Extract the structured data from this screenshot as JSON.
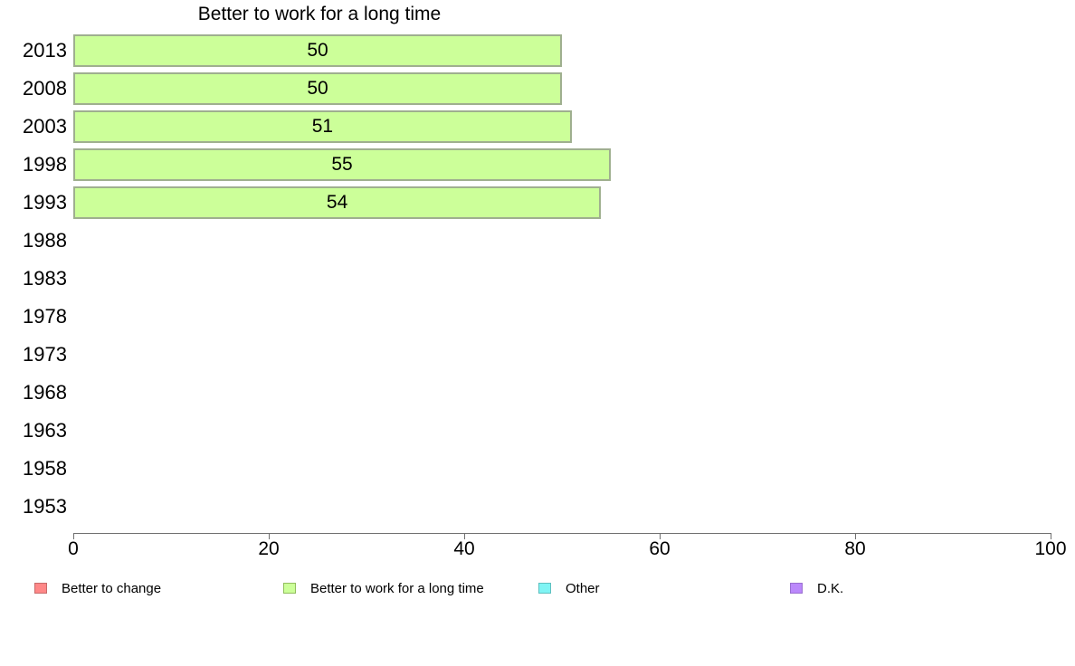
{
  "chart_data": {
    "type": "bar",
    "orientation": "horizontal",
    "title": "Better to work for a long time",
    "categories": [
      "2013",
      "2008",
      "2003",
      "1998",
      "1993",
      "1988",
      "1983",
      "1978",
      "1973",
      "1968",
      "1963",
      "1958",
      "1953"
    ],
    "series": [
      {
        "name": "Better to work for a long time",
        "values": [
          50,
          50,
          51,
          55,
          54,
          null,
          null,
          null,
          null,
          null,
          null,
          null,
          null
        ]
      }
    ],
    "xlim": [
      0,
      100
    ],
    "x_ticks": [
      "0",
      "20",
      "40",
      "60",
      "80",
      "100"
    ],
    "grid": false,
    "legend_position": "bottom",
    "bar_fill": "#CCFF99",
    "bar_border": "#9FAF8F",
    "axis_color": "#707070",
    "legend": [
      {
        "label": "Better to change",
        "color": "#FF8888",
        "border": "#C86A6A"
      },
      {
        "label": "Better to work for a long time",
        "color": "#CCFF99",
        "border": "#92BE5E"
      },
      {
        "label": "Other",
        "color": "#80F4F4",
        "border": "#5FC0C0"
      },
      {
        "label": "D.K.",
        "color": "#BB88FB",
        "border": "#9A6FD0"
      }
    ]
  }
}
